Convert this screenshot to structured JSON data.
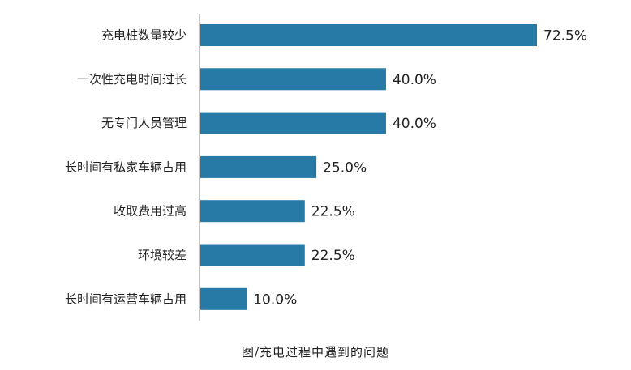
{
  "chart_data": {
    "type": "bar",
    "orientation": "horizontal",
    "categories": [
      "充电桩数量较少",
      "一次性充电时间过长",
      "无专门人员管理",
      "长时间有私家车辆占用",
      "收取费用过高",
      "环境较差",
      "长时间有运营车辆占用"
    ],
    "values": [
      72.5,
      40.0,
      40.0,
      25.0,
      22.5,
      22.5,
      10.0
    ],
    "data_labels": [
      "72.5%",
      "40.0%",
      "40.0%",
      "25.0%",
      "22.5%",
      "22.5%",
      "10.0%"
    ],
    "unit": "%",
    "xlim": [
      0,
      72.5
    ],
    "grid": false,
    "legend": "none",
    "bar_color": "#287aa6",
    "title": "",
    "xlabel": "",
    "ylabel": ""
  },
  "caption": "图/充电过程中遇到的问题"
}
